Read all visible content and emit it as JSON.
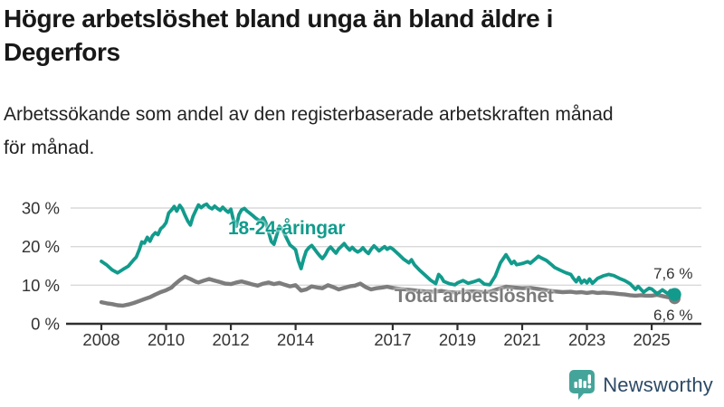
{
  "header": {
    "title_lines": [
      "Högre arbetslöshet bland unga än bland äldre i",
      "Degerfors"
    ],
    "subtitle_lines": [
      "Arbetssökande som andel av den registerbaserade arbetskraften månad",
      "för månad."
    ]
  },
  "branding": {
    "wordmark": "Newsworthy",
    "logo_icon": "bar-chart-speech-bubble-icon",
    "logo_color": "#45a49a",
    "wordmark_color": "#2c4a66"
  },
  "chart_data": {
    "type": "line",
    "title": "Högre arbetslöshet bland unga än bland äldre i Degerfors",
    "subtitle": "Arbetssökande som andel av den registerbaserade arbetskraften månad för månad.",
    "x_unit": "year (monthly data)",
    "x_range": [
      2008.0,
      2025.9
    ],
    "ylim": [
      0,
      33
    ],
    "grid": "horizontal",
    "legend_position": "inline-labels",
    "colors": {
      "youth": "#129b8c",
      "total": "#7d7d7d",
      "grid": "#d9d9d9",
      "axis": "#2f2f2f",
      "tick_text": "#333333"
    },
    "y_ticks": [
      {
        "value": 0,
        "label": "0 %"
      },
      {
        "value": 10,
        "label": "10 %"
      },
      {
        "value": 20,
        "label": "20 %"
      },
      {
        "value": 30,
        "label": "30 %"
      }
    ],
    "x_ticks": [
      {
        "value": 2008,
        "label": "2008"
      },
      {
        "value": 2010,
        "label": "2010"
      },
      {
        "value": 2012,
        "label": "2012"
      },
      {
        "value": 2014,
        "label": "2014"
      },
      {
        "value": 2017,
        "label": "2017"
      },
      {
        "value": 2019,
        "label": "2019"
      },
      {
        "value": 2021,
        "label": "2021"
      },
      {
        "value": 2023,
        "label": "2023"
      },
      {
        "value": 2025,
        "label": "2025"
      }
    ],
    "series": [
      {
        "name": "Total arbetslöshet",
        "color": "#7d7d7d",
        "end_value_label": "6,6 %",
        "end_value": 6.6,
        "points": [
          [
            2008.0,
            5.6
          ],
          [
            2008.17,
            5.3
          ],
          [
            2008.33,
            5.1
          ],
          [
            2008.5,
            4.8
          ],
          [
            2008.67,
            4.7
          ],
          [
            2008.83,
            5.0
          ],
          [
            2009.0,
            5.4
          ],
          [
            2009.17,
            5.9
          ],
          [
            2009.33,
            6.4
          ],
          [
            2009.5,
            6.9
          ],
          [
            2009.67,
            7.6
          ],
          [
            2009.83,
            8.2
          ],
          [
            2010.0,
            8.7
          ],
          [
            2010.17,
            9.4
          ],
          [
            2010.25,
            10.1
          ],
          [
            2010.42,
            11.3
          ],
          [
            2010.58,
            12.2
          ],
          [
            2010.75,
            11.6
          ],
          [
            2010.92,
            10.9
          ],
          [
            2011.0,
            10.7
          ],
          [
            2011.17,
            11.2
          ],
          [
            2011.33,
            11.6
          ],
          [
            2011.5,
            11.2
          ],
          [
            2011.67,
            10.8
          ],
          [
            2011.83,
            10.4
          ],
          [
            2012.0,
            10.3
          ],
          [
            2012.17,
            10.7
          ],
          [
            2012.33,
            11.0
          ],
          [
            2012.5,
            10.6
          ],
          [
            2012.67,
            10.2
          ],
          [
            2012.83,
            9.9
          ],
          [
            2013.0,
            10.4
          ],
          [
            2013.17,
            10.7
          ],
          [
            2013.33,
            10.3
          ],
          [
            2013.5,
            10.6
          ],
          [
            2013.67,
            10.1
          ],
          [
            2013.83,
            9.7
          ],
          [
            2014.0,
            10.0
          ],
          [
            2014.17,
            8.6
          ],
          [
            2014.33,
            8.9
          ],
          [
            2014.5,
            9.7
          ],
          [
            2014.67,
            9.4
          ],
          [
            2014.83,
            9.2
          ],
          [
            2015.0,
            10.0
          ],
          [
            2015.17,
            9.5
          ],
          [
            2015.33,
            8.9
          ],
          [
            2015.5,
            9.3
          ],
          [
            2015.67,
            9.7
          ],
          [
            2015.83,
            9.9
          ],
          [
            2016.0,
            10.4
          ],
          [
            2016.17,
            9.5
          ],
          [
            2016.33,
            8.9
          ],
          [
            2016.5,
            9.2
          ],
          [
            2016.67,
            9.4
          ],
          [
            2016.83,
            9.6
          ],
          [
            2017.0,
            9.3
          ],
          [
            2017.25,
            9.0
          ],
          [
            2017.5,
            8.8
          ],
          [
            2017.75,
            8.6
          ],
          [
            2018.0,
            8.4
          ],
          [
            2018.25,
            8.3
          ],
          [
            2018.5,
            8.5
          ],
          [
            2018.75,
            8.2
          ],
          [
            2019.0,
            8.1
          ],
          [
            2019.25,
            8.3
          ],
          [
            2019.5,
            8.4
          ],
          [
            2019.75,
            8.2
          ],
          [
            2020.0,
            8.3
          ],
          [
            2020.25,
            9.0
          ],
          [
            2020.5,
            9.6
          ],
          [
            2020.75,
            9.4
          ],
          [
            2021.0,
            9.2
          ],
          [
            2021.25,
            9.3
          ],
          [
            2021.5,
            9.0
          ],
          [
            2021.75,
            8.7
          ],
          [
            2022.0,
            8.4
          ],
          [
            2022.25,
            8.2
          ],
          [
            2022.5,
            8.3
          ],
          [
            2022.67,
            8.1
          ],
          [
            2022.83,
            8.2
          ],
          [
            2023.0,
            8.0
          ],
          [
            2023.17,
            8.2
          ],
          [
            2023.33,
            8.0
          ],
          [
            2023.5,
            8.1
          ],
          [
            2023.67,
            8.0
          ],
          [
            2023.83,
            7.9
          ],
          [
            2024.0,
            7.7
          ],
          [
            2024.17,
            7.6
          ],
          [
            2024.33,
            7.4
          ],
          [
            2024.5,
            7.3
          ],
          [
            2024.67,
            7.4
          ],
          [
            2024.83,
            7.3
          ],
          [
            2025.0,
            7.3
          ],
          [
            2025.17,
            7.5
          ],
          [
            2025.33,
            7.2
          ],
          [
            2025.5,
            6.9
          ],
          [
            2025.71,
            6.6
          ]
        ]
      },
      {
        "name": "18-24-åringar",
        "color": "#129b8c",
        "end_value_label": "7,6 %",
        "end_value": 7.6,
        "points": [
          [
            2008.0,
            16.2
          ],
          [
            2008.17,
            15.2
          ],
          [
            2008.33,
            14.0
          ],
          [
            2008.5,
            13.2
          ],
          [
            2008.67,
            14.1
          ],
          [
            2008.83,
            14.9
          ],
          [
            2009.0,
            16.6
          ],
          [
            2009.08,
            17.3
          ],
          [
            2009.17,
            19.2
          ],
          [
            2009.25,
            21.2
          ],
          [
            2009.33,
            20.9
          ],
          [
            2009.42,
            22.4
          ],
          [
            2009.5,
            21.4
          ],
          [
            2009.58,
            22.8
          ],
          [
            2009.67,
            23.6
          ],
          [
            2009.75,
            23.1
          ],
          [
            2009.83,
            24.6
          ],
          [
            2009.92,
            25.3
          ],
          [
            2010.0,
            26.2
          ],
          [
            2010.08,
            28.7
          ],
          [
            2010.17,
            29.5
          ],
          [
            2010.25,
            30.4
          ],
          [
            2010.33,
            29.2
          ],
          [
            2010.42,
            30.7
          ],
          [
            2010.5,
            29.8
          ],
          [
            2010.58,
            28.2
          ],
          [
            2010.67,
            26.6
          ],
          [
            2010.75,
            25.6
          ],
          [
            2010.83,
            27.8
          ],
          [
            2010.92,
            29.4
          ],
          [
            2011.0,
            30.8
          ],
          [
            2011.08,
            30.1
          ],
          [
            2011.17,
            30.7
          ],
          [
            2011.25,
            31.0
          ],
          [
            2011.33,
            30.2
          ],
          [
            2011.42,
            29.8
          ],
          [
            2011.5,
            30.5
          ],
          [
            2011.58,
            29.9
          ],
          [
            2011.67,
            29.4
          ],
          [
            2011.75,
            30.2
          ],
          [
            2011.83,
            29.5
          ],
          [
            2011.92,
            28.9
          ],
          [
            2012.0,
            29.7
          ],
          [
            2012.08,
            26.9
          ],
          [
            2012.17,
            25.3
          ],
          [
            2012.25,
            28.3
          ],
          [
            2012.33,
            29.5
          ],
          [
            2012.42,
            29.9
          ],
          [
            2012.5,
            29.2
          ],
          [
            2012.58,
            28.7
          ],
          [
            2012.67,
            28.1
          ],
          [
            2012.75,
            27.5
          ],
          [
            2012.83,
            27.0
          ],
          [
            2012.92,
            26.6
          ],
          [
            2013.0,
            27.5
          ],
          [
            2013.08,
            26.2
          ],
          [
            2013.17,
            23.7
          ],
          [
            2013.25,
            21.3
          ],
          [
            2013.33,
            20.6
          ],
          [
            2013.42,
            23.1
          ],
          [
            2013.5,
            25.3
          ],
          [
            2013.58,
            24.5
          ],
          [
            2013.67,
            23.1
          ],
          [
            2013.75,
            21.7
          ],
          [
            2013.83,
            20.4
          ],
          [
            2013.92,
            19.8
          ],
          [
            2014.0,
            19.2
          ],
          [
            2014.08,
            16.4
          ],
          [
            2014.17,
            14.3
          ],
          [
            2014.25,
            16.9
          ],
          [
            2014.33,
            18.9
          ],
          [
            2014.42,
            19.8
          ],
          [
            2014.5,
            20.3
          ],
          [
            2014.58,
            19.4
          ],
          [
            2014.67,
            18.4
          ],
          [
            2014.75,
            17.6
          ],
          [
            2014.83,
            16.9
          ],
          [
            2014.92,
            17.9
          ],
          [
            2015.0,
            19.2
          ],
          [
            2015.08,
            19.9
          ],
          [
            2015.17,
            19.0
          ],
          [
            2015.25,
            18.3
          ],
          [
            2015.33,
            19.4
          ],
          [
            2015.42,
            20.1
          ],
          [
            2015.5,
            20.8
          ],
          [
            2015.58,
            19.9
          ],
          [
            2015.67,
            19.1
          ],
          [
            2015.75,
            19.8
          ],
          [
            2015.83,
            19.1
          ],
          [
            2015.92,
            18.6
          ],
          [
            2016.0,
            19.0
          ],
          [
            2016.08,
            19.7
          ],
          [
            2016.17,
            18.8
          ],
          [
            2016.25,
            18.2
          ],
          [
            2016.33,
            19.3
          ],
          [
            2016.42,
            20.2
          ],
          [
            2016.5,
            19.6
          ],
          [
            2016.58,
            18.9
          ],
          [
            2016.67,
            19.5
          ],
          [
            2016.75,
            20.0
          ],
          [
            2016.83,
            19.3
          ],
          [
            2016.92,
            19.8
          ],
          [
            2017.0,
            19.4
          ],
          [
            2017.17,
            18.1
          ],
          [
            2017.33,
            16.8
          ],
          [
            2017.5,
            15.8
          ],
          [
            2017.58,
            16.6
          ],
          [
            2017.67,
            15.3
          ],
          [
            2017.83,
            13.9
          ],
          [
            2018.0,
            12.6
          ],
          [
            2018.17,
            11.3
          ],
          [
            2018.33,
            10.4
          ],
          [
            2018.42,
            12.8
          ],
          [
            2018.5,
            12.1
          ],
          [
            2018.58,
            11.0
          ],
          [
            2018.75,
            10.4
          ],
          [
            2018.92,
            10.1
          ],
          [
            2019.0,
            10.6
          ],
          [
            2019.17,
            11.2
          ],
          [
            2019.33,
            10.5
          ],
          [
            2019.5,
            10.9
          ],
          [
            2019.67,
            11.4
          ],
          [
            2019.83,
            10.3
          ],
          [
            2020.0,
            10.1
          ],
          [
            2020.17,
            12.4
          ],
          [
            2020.33,
            15.8
          ],
          [
            2020.5,
            17.9
          ],
          [
            2020.58,
            16.8
          ],
          [
            2020.67,
            15.6
          ],
          [
            2020.75,
            16.2
          ],
          [
            2020.83,
            15.3
          ],
          [
            2021.0,
            15.6
          ],
          [
            2021.17,
            16.1
          ],
          [
            2021.25,
            15.7
          ],
          [
            2021.42,
            16.9
          ],
          [
            2021.5,
            17.5
          ],
          [
            2021.58,
            17.1
          ],
          [
            2021.75,
            16.4
          ],
          [
            2021.92,
            15.2
          ],
          [
            2022.0,
            14.6
          ],
          [
            2022.17,
            13.9
          ],
          [
            2022.33,
            13.3
          ],
          [
            2022.5,
            12.8
          ],
          [
            2022.58,
            11.8
          ],
          [
            2022.67,
            10.9
          ],
          [
            2022.75,
            12.0
          ],
          [
            2022.83,
            10.6
          ],
          [
            2022.92,
            11.3
          ],
          [
            2023.0,
            10.6
          ],
          [
            2023.08,
            11.6
          ],
          [
            2023.17,
            10.5
          ],
          [
            2023.33,
            11.8
          ],
          [
            2023.5,
            12.4
          ],
          [
            2023.67,
            12.8
          ],
          [
            2023.83,
            12.5
          ],
          [
            2024.0,
            11.8
          ],
          [
            2024.17,
            11.2
          ],
          [
            2024.33,
            10.4
          ],
          [
            2024.5,
            8.9
          ],
          [
            2024.58,
            9.7
          ],
          [
            2024.75,
            8.2
          ],
          [
            2024.92,
            9.2
          ],
          [
            2025.0,
            9.0
          ],
          [
            2025.17,
            7.8
          ],
          [
            2025.33,
            8.8
          ],
          [
            2025.5,
            7.8
          ],
          [
            2025.58,
            8.6
          ],
          [
            2025.71,
            7.6
          ]
        ]
      }
    ]
  }
}
